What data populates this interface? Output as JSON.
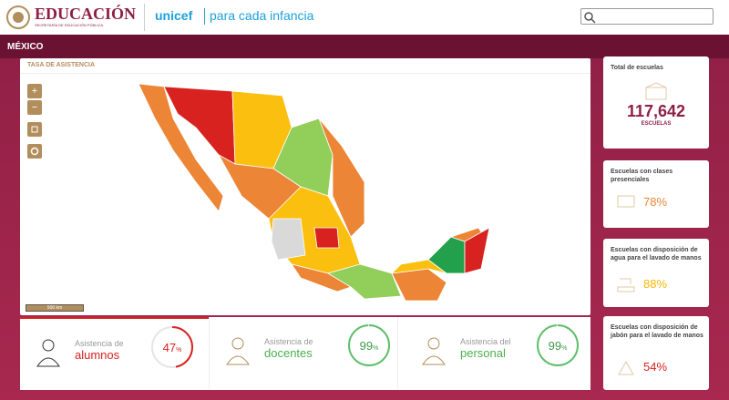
{
  "header": {
    "brand": "EDUCACIÓN",
    "brand_sub": "SECRETARÍA DE EDUCACIÓN PÚBLICA",
    "partner": "unicef",
    "partner_tagline": "para cada infancia"
  },
  "nav": {
    "title": "MÉXICO"
  },
  "map": {
    "title": "TASA DE ASISTENCIA",
    "scale": "500 km",
    "controls": [
      "+",
      "−"
    ]
  },
  "attendance": [
    {
      "label_line1": "Asistencia de",
      "label_line2": "alumnos",
      "value": 47,
      "unit": "%"
    },
    {
      "label_line1": "Asistencia de",
      "label_line2": "docentes",
      "value": 99,
      "unit": "%"
    },
    {
      "label_line1": "Asistencia del",
      "label_line2": "personal",
      "value": 99,
      "unit": "%"
    }
  ],
  "summary": {
    "title": "Total de escuelas",
    "value": "117,642",
    "unit": "ESCUELAS"
  },
  "indicators": [
    {
      "title": "Escuelas con clases presenciales",
      "value": 78,
      "unit": "%"
    },
    {
      "title": "Escuelas con disposición de agua para el lavado de manos",
      "value": 88,
      "unit": "%"
    },
    {
      "title": "Escuelas con disposición de jabón para el lavado de manos",
      "value": 54,
      "unit": "%"
    }
  ]
}
